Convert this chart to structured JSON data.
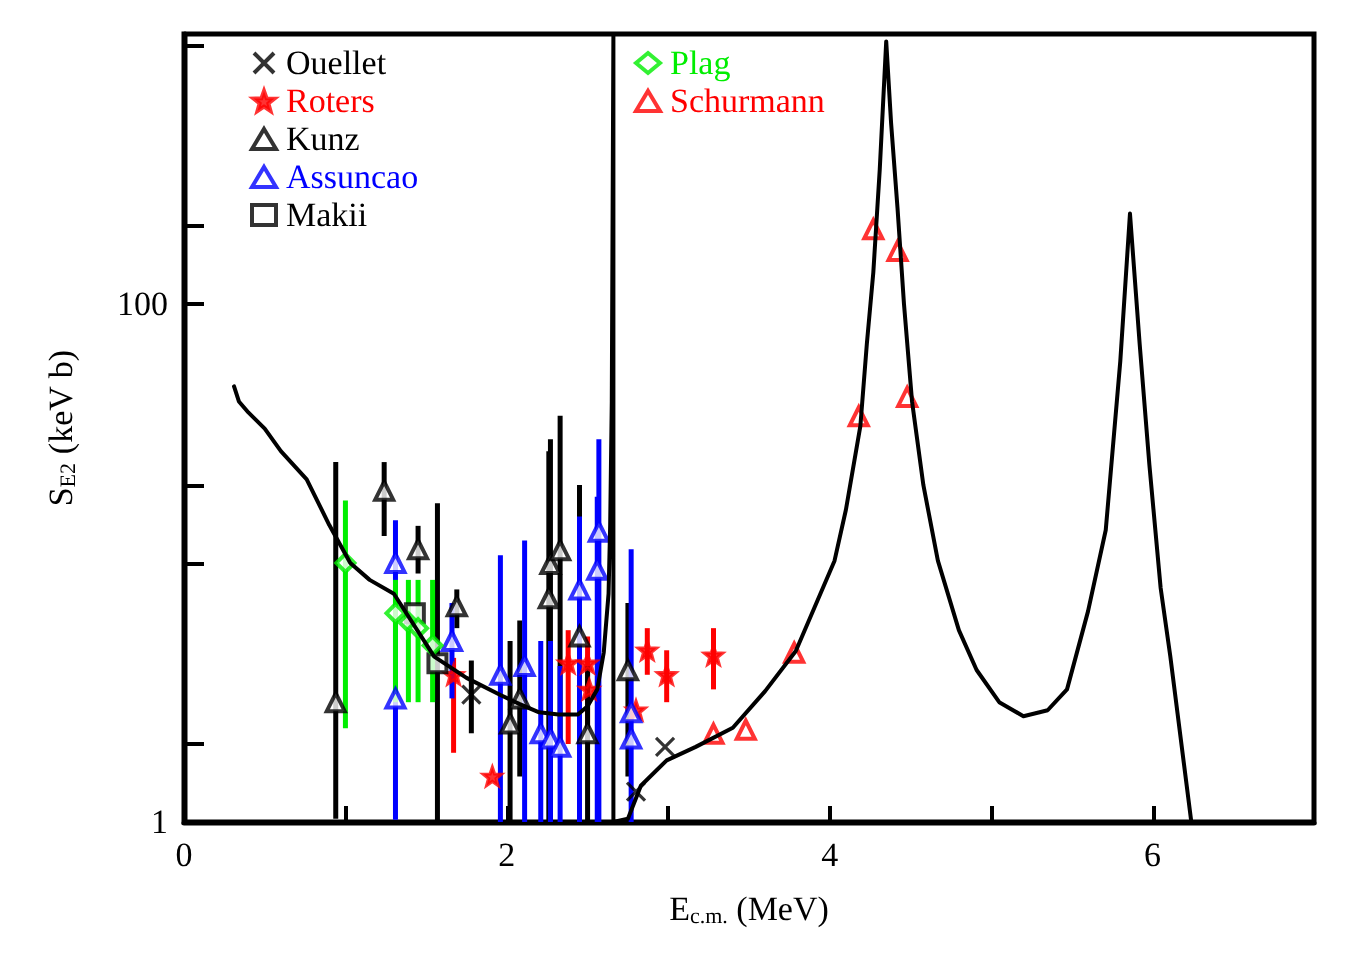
{
  "chart_data": {
    "type": "scatter",
    "xlabel": "E$_{c.m.}$ (MeV)",
    "ylabel": "S$_{E2}$ (keV b)",
    "log": "y",
    "xlim": [
      0,
      7
    ],
    "ylim": [
      1,
      1100
    ],
    "xticks": [
      0,
      {
        "value": 1,
        "label": null
      },
      2,
      {
        "value": 3,
        "label": null
      },
      4,
      {
        "value": 5,
        "label": null
      },
      6
    ],
    "yticks": [
      1,
      {
        "value": 2,
        "label": null
      },
      {
        "value": 10,
        "label": null
      },
      {
        "value": 20,
        "label": null
      },
      100,
      {
        "value": 200,
        "label": null
      },
      {
        "value": 1000,
        "label": null
      }
    ],
    "grid": false,
    "legend": "top left",
    "series": [
      {
        "name": "Ouellet",
        "color": "#000000",
        "marker": "cross",
        "x": [
          1.78,
          2.8,
          2.98
        ],
        "values": [
          3.1,
          1.31,
          1.95
        ],
        "errors": [
          [
            2.2,
            4.2
          ],
          null,
          null
        ]
      },
      {
        "name": "Roters",
        "color": "#ff0000",
        "marker": "star",
        "x": [
          1.67,
          1.91,
          2.38,
          2.5,
          2.51,
          2.8,
          2.87,
          2.99,
          3.28
        ],
        "values": [
          3.7,
          1.5,
          4.1,
          4.1,
          3.25,
          2.7,
          4.6,
          3.7,
          4.4
        ],
        "errors": [
          [
            1.85,
            4.3
          ],
          null,
          [
            2,
            5.5
          ],
          [
            2.2,
            5.2
          ],
          null,
          null,
          [
            3.7,
            5.6
          ],
          [
            2.9,
            4.6
          ],
          [
            3.25,
            5.6
          ]
        ]
      },
      {
        "name": "Kunz",
        "color": "#000000",
        "marker": "triangle",
        "x": [
          0.94,
          1.24,
          1.45,
          1.69,
          2.02,
          2.08,
          2.26,
          2.27,
          2.33,
          2.45,
          2.5,
          2.75
        ],
        "values": [
          2.9,
          19,
          11.3,
          6.8,
          2.4,
          3,
          7.3,
          9.9,
          11.2,
          5.2,
          2.2,
          3.85
        ],
        "errors": [
          [
            1.03,
            24.5
          ],
          [
            12.7,
            24.5
          ],
          [
            9.1,
            13.9
          ],
          [
            5.6,
            7.9
          ],
          [
            1,
            5
          ],
          [
            1.5,
            6
          ],
          [
            1,
            27
          ],
          [
            1,
            30
          ],
          [
            2,
            37
          ],
          [
            1,
            20
          ],
          [
            1,
            4
          ],
          [
            1.5,
            7
          ]
        ]
      },
      {
        "name": "Assuncao",
        "color": "#0000ff",
        "marker": "triangle",
        "x": [
          1.31,
          1.31,
          1.66,
          1.96,
          2.11,
          2.21,
          2.27,
          2.33,
          2.45,
          2.56,
          2.57,
          2.77,
          2.77
        ],
        "values": [
          10,
          3,
          5,
          3.7,
          4,
          2.2,
          2.1,
          1.95,
          7.9,
          9.4,
          13.2,
          2.65,
          2.1
        ],
        "errors": [
          [
            1.02,
            14.6
          ],
          null,
          [
            3,
            7
          ],
          [
            1,
            10.7
          ],
          [
            1,
            12.2
          ],
          [
            1,
            5
          ],
          [
            1,
            5
          ],
          [
            1,
            4
          ],
          [
            1,
            15.1
          ],
          [
            1,
            18
          ],
          [
            1,
            30
          ],
          [
            1,
            11.3
          ],
          null
        ]
      },
      {
        "name": "Makii",
        "color": "#000000",
        "marker": "square",
        "x": [
          1.43,
          1.57
        ],
        "values": [
          6.4,
          4.1
        ],
        "errors": [
          null,
          [
            1,
            17
          ]
        ]
      },
      {
        "name": "Plag",
        "color": "#00ee00",
        "marker": "diamond",
        "x": [
          1.0,
          1.31,
          1.39,
          1.45,
          1.54
        ],
        "values": [
          10,
          6.4,
          5.9,
          5.6,
          4.8
        ],
        "errors": [
          [
            2.3,
            17.4
          ],
          [
            2.9,
            8.6
          ],
          [
            2.9,
            8.6
          ],
          [
            2.9,
            8.6
          ],
          [
            2.9,
            8.6
          ]
        ]
      },
      {
        "name": "Schurmann",
        "color": "#ff0000",
        "marker": "triangle",
        "x": [
          3.28,
          3.48,
          3.78,
          4.18,
          4.27,
          4.42,
          4.48
        ],
        "values": [
          2.19,
          2.27,
          4.5,
          36.8,
          194,
          160,
          43.7
        ]
      },
      {
        "type": "line",
        "color": "#000000",
        "marker": "none",
        "line_style": "solid",
        "x": [
          0.31,
          0.34,
          0.4,
          0.5,
          0.6,
          0.76,
          0.9,
          1.03,
          1.15,
          1.3,
          1.55,
          1.75,
          1.96,
          2.08,
          2.2,
          2.32,
          2.44,
          2.5,
          2.56,
          2.6,
          2.63,
          2.64,
          2.65,
          2.66,
          2.66,
          2.75,
          2.83,
          2.99,
          3.17,
          3.4,
          3.6,
          3.79,
          4.03,
          4.1,
          4.19,
          4.23,
          4.27,
          4.31,
          4.35,
          4.38,
          4.42,
          4.46,
          4.51,
          4.58,
          4.67,
          4.8,
          4.91,
          5.05,
          5.2,
          5.35,
          5.47,
          5.6,
          5.71,
          5.8,
          5.86,
          5.92,
          5.98,
          6.05,
          6.11,
          6.24
        ],
        "values": [
          48,
          42,
          38,
          33,
          27,
          21,
          14,
          10,
          8.6,
          7.6,
          4.35,
          3.6,
          3.09,
          2.85,
          2.65,
          2.6,
          2.6,
          2.8,
          3.25,
          4.5,
          7.6,
          14,
          42,
          1100,
          1,
          1.03,
          1.38,
          1.73,
          1.95,
          2.31,
          3.2,
          4.57,
          10.2,
          16,
          33.8,
          70,
          132,
          330,
          1030,
          500,
          234,
          100,
          42,
          20,
          10.2,
          5.5,
          3.86,
          2.9,
          2.56,
          2.7,
          3.25,
          6.5,
          13.4,
          60,
          223,
          70,
          24,
          8,
          4.35,
          1
        ]
      }
    ]
  }
}
